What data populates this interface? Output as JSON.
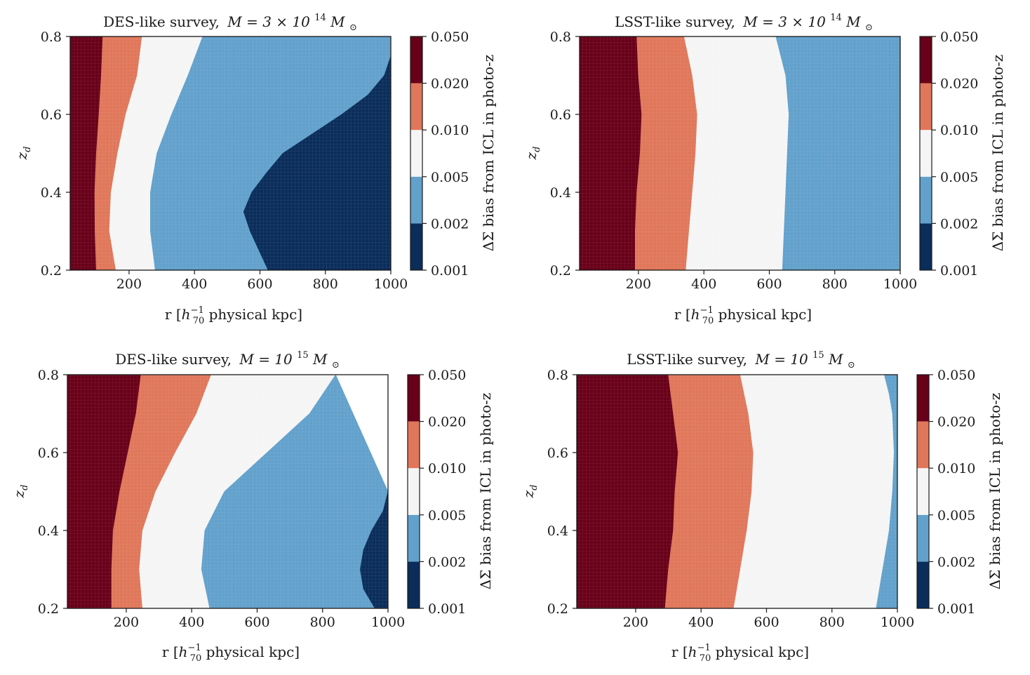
{
  "colors": {
    "c0": "#0a2d5a",
    "c1": "#62a1cc",
    "c2": "#f5f5f5",
    "c3": "#e0775a",
    "c4": "#680019",
    "axis": "#1a1a1a"
  },
  "chart_data": [
    {
      "type": "heatmap",
      "title": "DES-like survey, M = 3 × 10^14 M⊙",
      "title_parts": {
        "lead": "DES-like survey,",
        "formula": "M = 3 × 10",
        "exp": "14",
        "unit": "M",
        "sub": "⊙"
      },
      "xlabel": "r [h70^-1 physical kpc]",
      "ylabel": "z_d",
      "xlim": [
        20,
        1000
      ],
      "ylim": [
        0.2,
        0.8
      ],
      "xticks": [
        "200",
        "400",
        "600",
        "800",
        "1000"
      ],
      "yticks": [
        "0.2",
        "0.4",
        "0.6",
        "0.8"
      ],
      "colorbar_label": "ΔΣ bias from ICL in photo-z",
      "colorbar_levels": [
        "0.001",
        "0.002",
        "0.005",
        "0.010",
        "0.020",
        "0.050"
      ],
      "boundaries": [
        {
          "between": [
            "0.020–0.050",
            "0.010–0.020"
          ],
          "z": [
            0.2,
            0.3,
            0.4,
            0.5,
            0.6,
            0.7,
            0.8
          ],
          "r": [
            100,
            96,
            95,
            100,
            108,
            115,
            120
          ]
        },
        {
          "between": [
            "0.010–0.020",
            "0.005–0.010"
          ],
          "z": [
            0.2,
            0.3,
            0.4,
            0.5,
            0.6,
            0.7,
            0.8
          ],
          "r": [
            160,
            140,
            145,
            165,
            190,
            225,
            240
          ]
        },
        {
          "between": [
            "0.005–0.010",
            "0.002–0.005"
          ],
          "z": [
            0.2,
            0.3,
            0.4,
            0.5,
            0.6,
            0.7,
            0.8
          ],
          "r": [
            280,
            265,
            265,
            285,
            330,
            380,
            425
          ]
        },
        {
          "between": [
            "0.002–0.005",
            "0.001–0.002"
          ],
          "z": [
            0.2,
            0.3,
            0.35,
            0.4,
            0.45,
            0.5,
            0.55,
            0.6,
            0.65,
            0.7,
            0.75,
            0.8
          ],
          "r": [
            625,
            570,
            550,
            575,
            620,
            670,
            760,
            850,
            930,
            980,
            1000,
            1000
          ]
        }
      ]
    },
    {
      "type": "heatmap",
      "title": "LSST-like survey, M = 3 × 10^14 M⊙",
      "title_parts": {
        "lead": "LSST-like survey,",
        "formula": "M = 3 × 10",
        "exp": "14",
        "unit": "M",
        "sub": "⊙"
      },
      "xlabel": "r [h70^-1 physical kpc]",
      "ylabel": "z_d",
      "xlim": [
        20,
        1000
      ],
      "ylim": [
        0.2,
        0.8
      ],
      "xticks": [
        "200",
        "400",
        "600",
        "800",
        "1000"
      ],
      "yticks": [
        "0.2",
        "0.4",
        "0.6",
        "0.8"
      ],
      "colorbar_label": "ΔΣ bias from ICL in photo-z",
      "colorbar_levels": [
        "0.001",
        "0.002",
        "0.005",
        "0.010",
        "0.020",
        "0.050"
      ],
      "boundaries": [
        {
          "between": [
            "0.020–0.050",
            "0.010–0.020"
          ],
          "z": [
            0.2,
            0.3,
            0.4,
            0.5,
            0.6,
            0.7,
            0.8
          ],
          "r": [
            190,
            190,
            195,
            205,
            210,
            200,
            195
          ]
        },
        {
          "between": [
            "0.010–0.020",
            "0.005–0.010"
          ],
          "z": [
            0.2,
            0.3,
            0.4,
            0.5,
            0.6,
            0.7,
            0.8
          ],
          "r": [
            345,
            355,
            365,
            375,
            380,
            365,
            340
          ]
        },
        {
          "between": [
            "0.005–0.010",
            "0.002–0.005"
          ],
          "z": [
            0.2,
            0.3,
            0.4,
            0.5,
            0.6,
            0.7,
            0.8
          ],
          "r": [
            640,
            645,
            650,
            655,
            660,
            650,
            620
          ]
        }
      ]
    },
    {
      "type": "heatmap",
      "title": "DES-like survey, M = 10^15 M⊙",
      "title_parts": {
        "lead": "DES-like survey,",
        "formula": "M = 10",
        "exp": "15",
        "unit": "M",
        "sub": "⊙"
      },
      "xlabel": "r [h70^-1 physical kpc]",
      "ylabel": "z_d",
      "xlim": [
        20,
        1000
      ],
      "ylim": [
        0.2,
        0.8
      ],
      "xticks": [
        "200",
        "400",
        "600",
        "800",
        "1000"
      ],
      "yticks": [
        "0.2",
        "0.4",
        "0.6",
        "0.8"
      ],
      "colorbar_label": "ΔΣ bias from ICL in photo-z",
      "colorbar_levels": [
        "0.001",
        "0.002",
        "0.005",
        "0.010",
        "0.020",
        "0.050"
      ],
      "boundaries": [
        {
          "between": [
            "0.020–0.050",
            "0.010–0.020"
          ],
          "z": [
            0.2,
            0.3,
            0.4,
            0.5,
            0.6,
            0.7,
            0.8
          ],
          "r": [
            155,
            155,
            160,
            180,
            205,
            230,
            245
          ]
        },
        {
          "between": [
            "0.010–0.020",
            "0.005–0.010"
          ],
          "z": [
            0.2,
            0.3,
            0.4,
            0.5,
            0.6,
            0.7,
            0.8
          ],
          "r": [
            250,
            240,
            250,
            290,
            350,
            415,
            460
          ]
        },
        {
          "between": [
            "0.005–0.010",
            "0.002–0.005"
          ],
          "z": [
            0.2,
            0.3,
            0.4,
            0.5,
            0.6,
            0.7,
            0.8
          ],
          "r": [
            455,
            430,
            440,
            500,
            630,
            760,
            840
          ]
        },
        {
          "between": [
            "0.002–0.005",
            "0.001–0.002"
          ],
          "z": [
            0.2,
            0.25,
            0.3,
            0.35,
            0.4,
            0.45,
            0.5
          ],
          "r": [
            960,
            925,
            915,
            925,
            950,
            985,
            1000
          ]
        }
      ]
    },
    {
      "type": "heatmap",
      "title": "LSST-like survey, M = 10^15 M⊙",
      "title_parts": {
        "lead": "LSST-like survey,",
        "formula": "M = 10",
        "exp": "15",
        "unit": "M",
        "sub": "⊙"
      },
      "xlabel": "r [h70^-1 physical kpc]",
      "ylabel": "z_d",
      "xlim": [
        20,
        1000
      ],
      "ylim": [
        0.2,
        0.8
      ],
      "xticks": [
        "200",
        "400",
        "600",
        "800",
        "1000"
      ],
      "yticks": [
        "0.2",
        "0.4",
        "0.6",
        "0.8"
      ],
      "colorbar_label": "ΔΣ bias from ICL in photo-z",
      "colorbar_levels": [
        "0.001",
        "0.002",
        "0.005",
        "0.010",
        "0.020",
        "0.050"
      ],
      "boundaries": [
        {
          "between": [
            "0.020–0.050",
            "0.010–0.020"
          ],
          "z": [
            0.2,
            0.3,
            0.4,
            0.5,
            0.6,
            0.7,
            0.8
          ],
          "r": [
            290,
            300,
            315,
            320,
            330,
            315,
            300
          ]
        },
        {
          "between": [
            "0.010–0.020",
            "0.005–0.010"
          ],
          "z": [
            0.2,
            0.3,
            0.4,
            0.5,
            0.6,
            0.7,
            0.8
          ],
          "r": [
            500,
            520,
            540,
            555,
            560,
            545,
            520
          ]
        },
        {
          "between": [
            "0.005–0.010",
            "0.002–0.005"
          ],
          "z": [
            0.2,
            0.3,
            0.4,
            0.5,
            0.6,
            0.7,
            0.75,
            0.8
          ],
          "r": [
            935,
            955,
            975,
            985,
            990,
            985,
            975,
            960
          ]
        }
      ]
    }
  ]
}
